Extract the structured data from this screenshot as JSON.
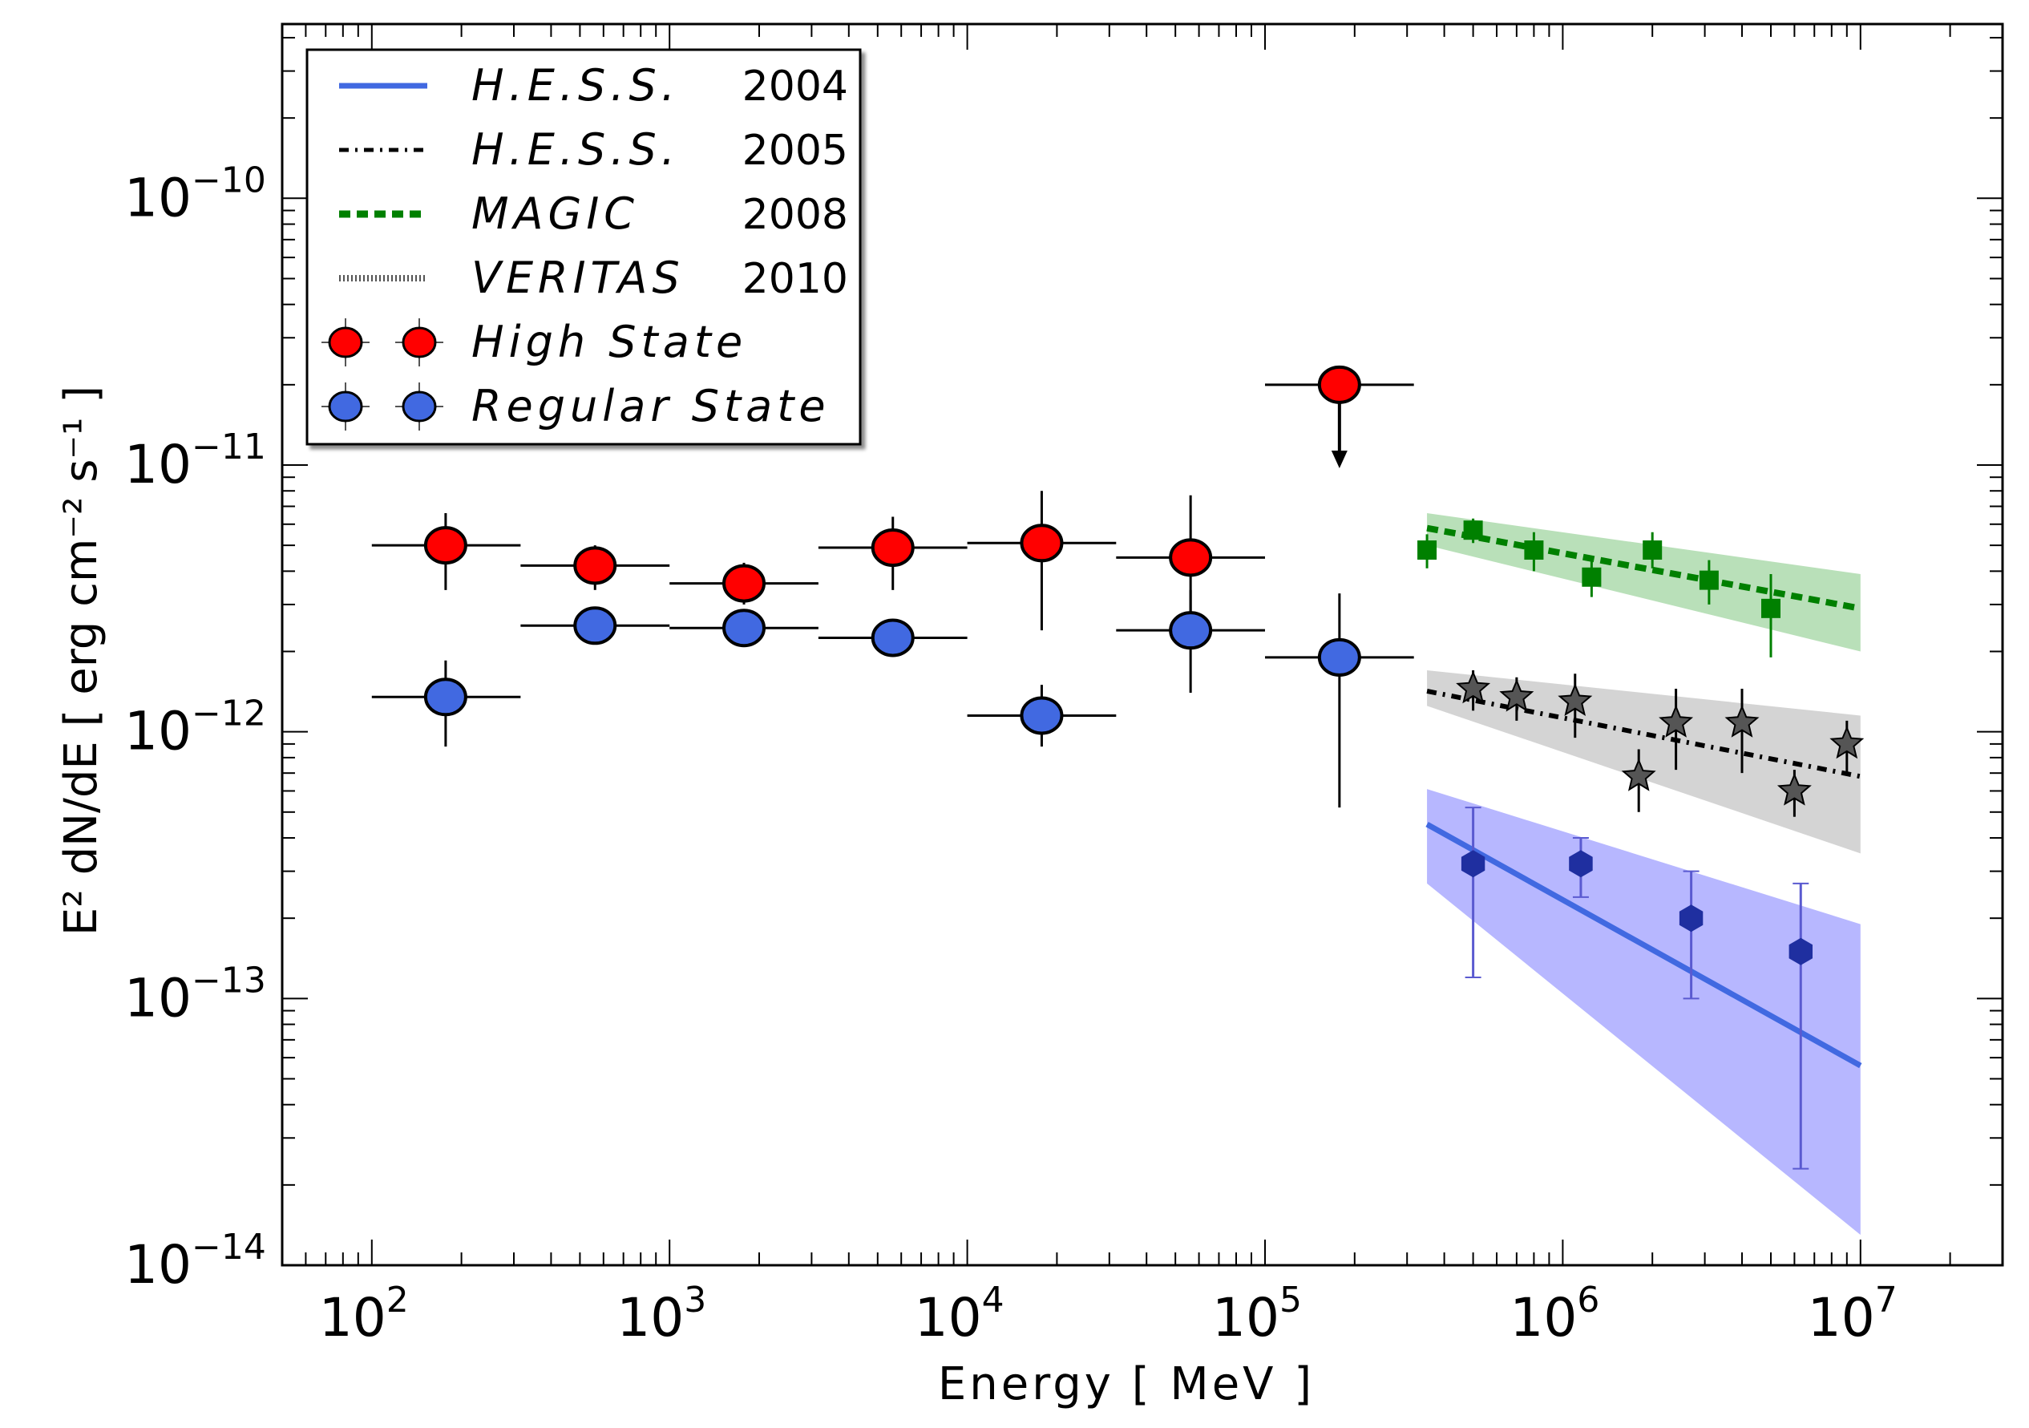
{
  "chart_data": {
    "type": "scatter",
    "title": "",
    "xlabel": "Energy [ MeV ]",
    "ylabel": "E² dN/dE [ erg cm⁻² s⁻¹ ]",
    "x_scale": "log",
    "y_scale": "log",
    "xlim": [
      50,
      30000000
    ],
    "ylim": [
      1e-14,
      4.5e-10
    ],
    "x_ticks": [
      {
        "value": 100,
        "base": "10",
        "exp": "2"
      },
      {
        "value": 1000,
        "base": "10",
        "exp": "3"
      },
      {
        "value": 10000,
        "base": "10",
        "exp": "4"
      },
      {
        "value": 100000,
        "base": "10",
        "exp": "5"
      },
      {
        "value": 1000000,
        "base": "10",
        "exp": "6"
      },
      {
        "value": 10000000,
        "base": "10",
        "exp": "7"
      }
    ],
    "y_ticks": [
      {
        "value": 1e-14,
        "base": "10",
        "exp": "−14"
      },
      {
        "value": 1e-13,
        "base": "10",
        "exp": "−13"
      },
      {
        "value": 1e-12,
        "base": "10",
        "exp": "−12"
      },
      {
        "value": 1e-11,
        "base": "10",
        "exp": "−11"
      },
      {
        "value": 1e-10,
        "base": "10",
        "exp": "−10"
      }
    ],
    "legend": {
      "placement": "top-left",
      "entries": [
        {
          "name": "H.E.S.S.",
          "year": "2004",
          "style": "solid-line",
          "color": "#4169e1"
        },
        {
          "name": "H.E.S.S.",
          "year": "2005",
          "style": "dash-dot-line",
          "color": "#000000"
        },
        {
          "name": "MAGIC",
          "year": "2008",
          "style": "dashed-line",
          "color": "#008000"
        },
        {
          "name": "VERITAS",
          "year": "2010",
          "style": "dotted-line",
          "color": "#555555"
        },
        {
          "name": "High State",
          "year": "",
          "style": "marker",
          "color": "#ff0000"
        },
        {
          "name": "Regular State",
          "year": "",
          "style": "marker",
          "color": "#4169e1"
        }
      ]
    },
    "colors": {
      "high_state": "#ff0000",
      "regular_state": "#4169e1",
      "hess2004": "#4169e1",
      "hess2004_band": "#7b7bff",
      "hess2005": "#000000",
      "hess2005_band": "#b0b0b0",
      "magic": "#008000",
      "magic_band": "#7fc77f",
      "veritas_marker": "#555555",
      "hess2004_marker": "#1f2fa0"
    },
    "series": [
      {
        "name": "High State",
        "marker": "circle",
        "points": [
          {
            "x": 177,
            "y": 5e-12,
            "xlo": 100,
            "xhi": 316,
            "ylo": 3.4e-12,
            "yhi": 6.6e-12
          },
          {
            "x": 562,
            "y": 4.2e-12,
            "xlo": 316,
            "xhi": 1000,
            "ylo": 3.4e-12,
            "yhi": 5e-12
          },
          {
            "x": 1778,
            "y": 3.6e-12,
            "xlo": 1000,
            "xhi": 3162,
            "ylo": 3e-12,
            "yhi": 4.3e-12
          },
          {
            "x": 5623,
            "y": 4.9e-12,
            "xlo": 3162,
            "xhi": 10000,
            "ylo": 3.4e-12,
            "yhi": 6.4e-12
          },
          {
            "x": 17783,
            "y": 5.1e-12,
            "xlo": 10000,
            "xhi": 31623,
            "ylo": 2.4e-12,
            "yhi": 8e-12
          },
          {
            "x": 56234,
            "y": 4.5e-12,
            "xlo": 31623,
            "xhi": 100000,
            "ylo": 2.5e-12,
            "yhi": 7.7e-12
          },
          {
            "x": 177828,
            "y": 2e-11,
            "xlo": 100000,
            "xhi": 316228,
            "upper_limit": true,
            "arrow_to": 1e-11
          }
        ]
      },
      {
        "name": "Regular State",
        "marker": "circle",
        "points": [
          {
            "x": 177,
            "y": 1.35e-12,
            "xlo": 100,
            "xhi": 316,
            "ylo": 8.8e-13,
            "yhi": 1.85e-12
          },
          {
            "x": 562,
            "y": 2.5e-12,
            "xlo": 316,
            "xhi": 1000,
            "ylo": 2.3e-12,
            "yhi": 2.7e-12
          },
          {
            "x": 1778,
            "y": 2.45e-12,
            "xlo": 1000,
            "xhi": 3162,
            "ylo": 2.3e-12,
            "yhi": 2.6e-12
          },
          {
            "x": 5623,
            "y": 2.25e-12,
            "xlo": 3162,
            "xhi": 10000,
            "ylo": 2.1e-12,
            "yhi": 2.4e-12
          },
          {
            "x": 17783,
            "y": 1.15e-12,
            "xlo": 10000,
            "xhi": 31623,
            "ylo": 8.8e-13,
            "yhi": 1.5e-12
          },
          {
            "x": 56234,
            "y": 2.4e-12,
            "xlo": 31623,
            "xhi": 100000,
            "ylo": 1.4e-12,
            "yhi": 3.4e-12
          },
          {
            "x": 177828,
            "y": 1.9e-12,
            "xlo": 100000,
            "xhi": 316228,
            "ylo": 5.2e-13,
            "yhi": 3.3e-12
          }
        ]
      },
      {
        "name": "MAGIC 2008",
        "marker": "square",
        "line": {
          "x": [
            350000,
            10000000
          ],
          "y": [
            5.8e-12,
            2.9e-12
          ]
        },
        "band": {
          "x": [
            350000,
            10000000
          ],
          "lower": [
            5e-12,
            2e-12
          ],
          "upper": [
            6.6e-12,
            3.9e-12
          ]
        },
        "points": [
          {
            "x": 350000,
            "y": 4.8e-12,
            "ylo": 4.1e-12,
            "yhi": 5.5e-12
          },
          {
            "x": 500000,
            "y": 5.7e-12,
            "ylo": 5.1e-12,
            "yhi": 6.3e-12
          },
          {
            "x": 800000,
            "y": 4.8e-12,
            "ylo": 4e-12,
            "yhi": 5.6e-12
          },
          {
            "x": 1250000,
            "y": 3.8e-12,
            "ylo": 3.2e-12,
            "yhi": 4.4e-12
          },
          {
            "x": 2000000,
            "y": 4.8e-12,
            "ylo": 4.1e-12,
            "yhi": 5.6e-12
          },
          {
            "x": 3100000,
            "y": 3.7e-12,
            "ylo": 3e-12,
            "yhi": 4.4e-12
          },
          {
            "x": 5000000,
            "y": 2.9e-12,
            "ylo": 1.9e-12,
            "yhi": 3.9e-12
          }
        ]
      },
      {
        "name": "H.E.S.S. 2005",
        "marker": "star",
        "line": {
          "x": [
            350000,
            10000000
          ],
          "y": [
            1.42e-12,
            6.8e-13
          ]
        },
        "band": {
          "x": [
            350000,
            10000000
          ],
          "lower": [
            1.25e-12,
            3.5e-13
          ],
          "upper": [
            1.7e-12,
            1.15e-12
          ]
        },
        "points": [
          {
            "x": 500000,
            "y": 1.45e-12,
            "ylo": 1.2e-12,
            "yhi": 1.7e-12
          },
          {
            "x": 700000,
            "y": 1.35e-12,
            "ylo": 1.1e-12,
            "yhi": 1.6e-12
          },
          {
            "x": 1100000,
            "y": 1.3e-12,
            "ylo": 9.5e-13,
            "yhi": 1.65e-12
          },
          {
            "x": 1800000,
            "y": 6.8e-13,
            "ylo": 5e-13,
            "yhi": 8.6e-13
          },
          {
            "x": 2400000,
            "y": 1.08e-12,
            "ylo": 7.2e-13,
            "yhi": 1.45e-12
          },
          {
            "x": 4000000,
            "y": 1.08e-12,
            "ylo": 7e-13,
            "yhi": 1.45e-12
          },
          {
            "x": 6000000,
            "y": 6e-13,
            "ylo": 4.8e-13,
            "yhi": 7.2e-13
          },
          {
            "x": 9000000,
            "y": 9e-13,
            "ylo": 7e-13,
            "yhi": 1.1e-12
          }
        ]
      },
      {
        "name": "H.E.S.S. 2004",
        "marker": "hexagon",
        "line": {
          "x": [
            350000,
            10000000
          ],
          "y": [
            4.5e-13,
            5.6e-14
          ]
        },
        "band": {
          "x": [
            350000,
            10000000
          ],
          "lower": [
            2.7e-13,
            1.3e-14
          ],
          "upper": [
            6.1e-13,
            1.9e-13
          ]
        },
        "points": [
          {
            "x": 500000,
            "y": 3.2e-13,
            "ylo": 1.2e-13,
            "yhi": 5.2e-13
          },
          {
            "x": 1150000,
            "y": 3.2e-13,
            "ylo": 2.4e-13,
            "yhi": 4e-13
          },
          {
            "x": 2700000,
            "y": 2e-13,
            "ylo": 1e-13,
            "yhi": 3e-13
          },
          {
            "x": 6300000,
            "y": 1.5e-13,
            "ylo": 2.3e-14,
            "yhi": 2.7e-13
          }
        ]
      }
    ]
  }
}
